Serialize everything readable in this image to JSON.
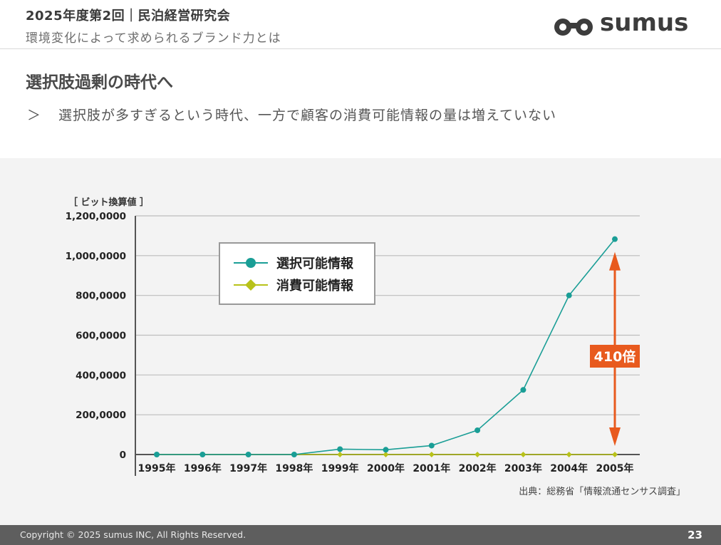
{
  "header": {
    "title": "2025年度第2回｜民泊経営研究会",
    "subtitle": "環境変化によって求められるブランド力とは",
    "logo_text": "sumus"
  },
  "slide": {
    "section_title": "選択肢過剰の時代へ",
    "bullet_marker": "＞",
    "bullet_text": "選択肢が多すぎるという時代、一方で顧客の消費可能情報の量は増えていない"
  },
  "chart_data": {
    "type": "line",
    "unit_label": "［ ビット換算値 ］",
    "categories": [
      "1995年",
      "1996年",
      "1997年",
      "1998年",
      "1999年",
      "2000年",
      "2001年",
      "2002年",
      "2003年",
      "2004年",
      "2005年"
    ],
    "y_ticks": [
      0,
      200000,
      400000,
      600000,
      800000,
      1000000,
      1200000
    ],
    "y_tick_labels": [
      "0",
      "200,0000",
      "400,0000",
      "600,0000",
      "800,0000",
      "1,000,0000",
      "1,200,0000"
    ],
    "ylim": [
      0,
      1200000
    ],
    "grid": true,
    "legend_position": "top-left",
    "series": [
      {
        "name": "選択可能情報",
        "color": "#1a9e96",
        "marker": "circle",
        "values": [
          0,
          0,
          0,
          0,
          27000,
          24000,
          45000,
          122000,
          325000,
          800000,
          1083000
        ]
      },
      {
        "name": "消費可能情報",
        "color": "#b8c21a",
        "marker": "diamond",
        "values": [
          0,
          0,
          0,
          0,
          0,
          0,
          0,
          0,
          0,
          0,
          0
        ]
      }
    ],
    "annotation": {
      "label": "410倍",
      "color": "#e85a1e"
    },
    "source": "出典：総務省「情報流通センサス調査」"
  },
  "footer": {
    "copyright": "Copyright © 2025 sumus INC, All Rights Reserved.",
    "page_number": "23"
  }
}
